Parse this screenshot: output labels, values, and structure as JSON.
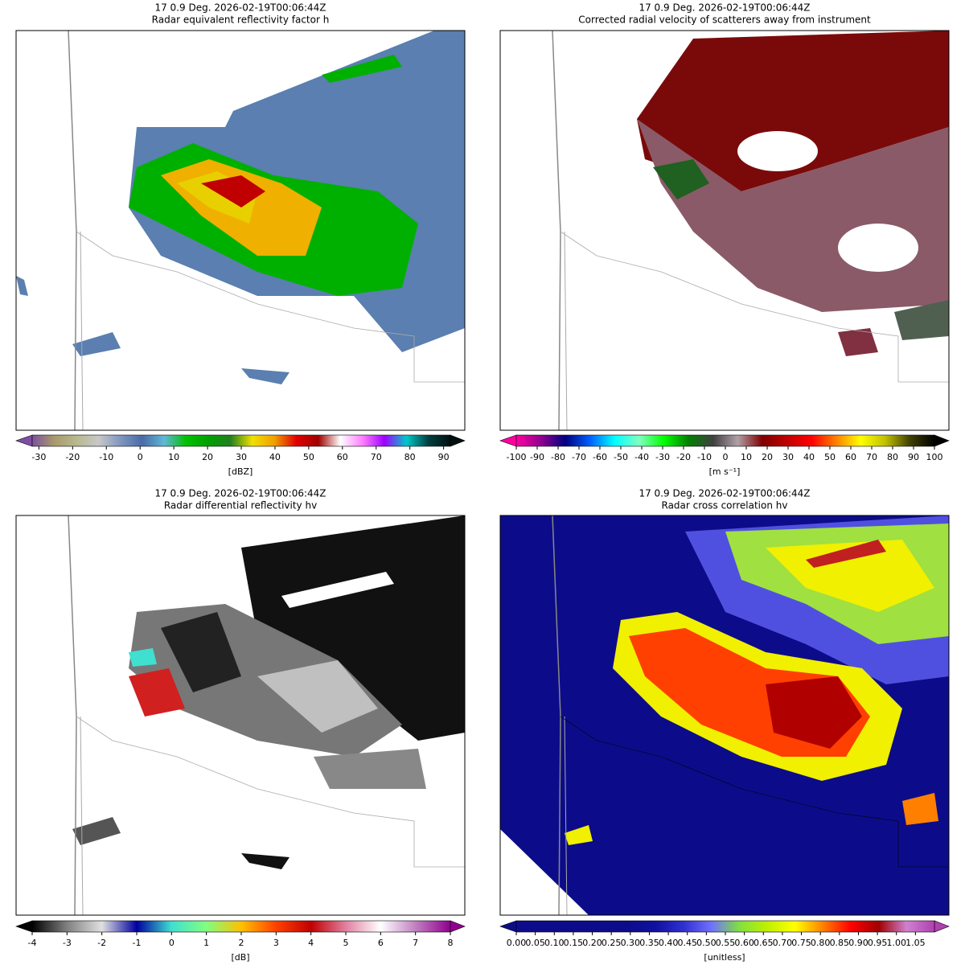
{
  "chart_data": [
    {
      "type": "radar",
      "title": "17 0.9 Deg. 2026-02-19T00:06:44Z",
      "subtitle": "Radar equivalent reflectivity factor h",
      "colorbar_label": "[dBZ]",
      "clim": [
        -32,
        92
      ],
      "ticks": [
        -30,
        -20,
        -10,
        0,
        10,
        20,
        30,
        40,
        50,
        60,
        70,
        80,
        90
      ],
      "colors": [
        "#7e4fa0",
        "#a89a6a",
        "#b8b890",
        "#c8c8c8",
        "#8098c0",
        "#4a6aa8",
        "#60b8d8",
        "#00c000",
        "#00a000",
        "#208020",
        "#f0e000",
        "#f0a000",
        "#e00000",
        "#a00000",
        "#ffffff",
        "#ff80ff",
        "#a000ff",
        "#00c8c8",
        "#004040",
        "#001010"
      ]
    },
    {
      "type": "radar",
      "title": "17 0.9 Deg. 2026-02-19T00:06:44Z",
      "subtitle": "Corrected radial velocity of scatterers away from instrument",
      "colorbar_label": "[m s⁻¹]",
      "clim": [
        -100,
        100
      ],
      "ticks": [
        -100,
        -90,
        -80,
        -70,
        -60,
        -50,
        -40,
        -30,
        -20,
        -10,
        0,
        10,
        20,
        30,
        40,
        50,
        60,
        70,
        80,
        90,
        100
      ],
      "colors": [
        "#ff00a0",
        "#900090",
        "#000080",
        "#0060ff",
        "#00ffff",
        "#80ffc0",
        "#00ff00",
        "#008000",
        "#404040",
        "#b0a0a8",
        "#800000",
        "#c00000",
        "#ff0000",
        "#ff8000",
        "#ffff00",
        "#c0c000",
        "#404000",
        "#000000"
      ]
    },
    {
      "type": "radar",
      "title": "17 0.9 Deg. 2026-02-19T00:06:44Z",
      "subtitle": "Radar differential reflectivity hv",
      "colorbar_label": "[dB]",
      "clim": [
        -4,
        8
      ],
      "ticks": [
        -4,
        -3,
        -2,
        -1,
        0,
        1,
        2,
        3,
        4,
        5,
        6,
        7,
        8
      ],
      "colors": [
        "#000000",
        "#808080",
        "#e0e0e0",
        "#0000a0",
        "#40e0d0",
        "#80ff80",
        "#ffc000",
        "#ff4000",
        "#c00000",
        "#e080a0",
        "#ffffff",
        "#c080c0",
        "#900090"
      ]
    },
    {
      "type": "radar",
      "title": "17 0.9 Deg. 2026-02-19T00:06:44Z",
      "subtitle": "Radar cross correlation hv",
      "colorbar_label": "[unitless]",
      "clim": [
        0,
        1.1
      ],
      "ticks": [
        {
          "value": 0,
          "label": "0.00"
        },
        0.05,
        {
          "value": 0.1,
          "label": "0.10"
        },
        0.15,
        {
          "value": 0.2,
          "label": "0.20"
        },
        0.25,
        {
          "value": 0.3,
          "label": "0.30"
        },
        0.35,
        {
          "value": 0.4,
          "label": "0.40"
        },
        0.45,
        {
          "value": 0.5,
          "label": "0.50"
        },
        0.55,
        {
          "value": 0.6,
          "label": "0.60"
        },
        0.65,
        {
          "value": 0.7,
          "label": "0.70"
        },
        0.75,
        {
          "value": 0.8,
          "label": "0.80"
        },
        0.85,
        {
          "value": 0.9,
          "label": "0.90"
        },
        0.95,
        {
          "value": 1,
          "label": "1.00"
        },
        1.05
      ],
      "colors": [
        "#0c0c8a",
        "#0c0c8a",
        "#0c0c8a",
        "#0c0c8a",
        "#0c0c8a",
        "#1010a0",
        "#3030d0",
        "#7070ff",
        "#80e040",
        "#c0f000",
        "#ffff00",
        "#ff8000",
        "#ff0000",
        "#a00000",
        "#d080d0",
        "#b040b0"
      ]
    }
  ]
}
